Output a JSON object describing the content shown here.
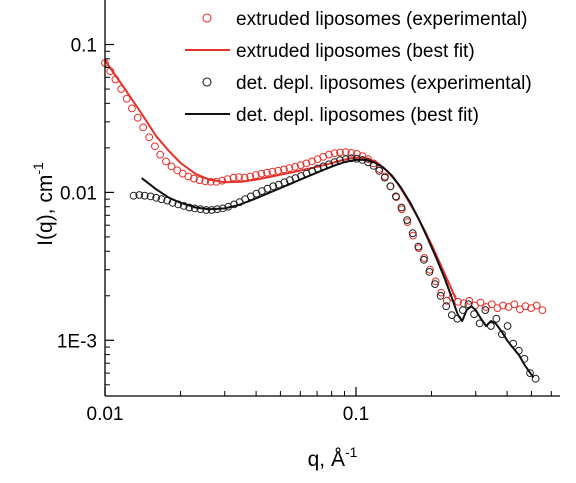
{
  "chart_data": {
    "type": "scatter",
    "x_scale": "log",
    "y_scale": "log",
    "xlim": [
      0.01,
      0.65
    ],
    "ylim": [
      0.00042,
      0.2
    ],
    "xlabel": "q, Å",
    "xlabel_sup": "-1",
    "ylabel": "I(q), cm",
    "ylabel_sup": "-1",
    "x_ticks": [
      0.01,
      0.1
    ],
    "x_tick_labels": [
      "0.01",
      "0.1"
    ],
    "y_ticks": [
      0.001,
      0.01,
      0.1
    ],
    "y_tick_labels": [
      "1E-3",
      "0.01",
      "0.1"
    ],
    "grid": false,
    "legend_position": "top-right",
    "series": [
      {
        "name": "extruded liposomes (experimental)",
        "kind": "markers",
        "marker": "open-circle",
        "color": "#e8302a",
        "x": [
          0.01,
          0.0105,
          0.011,
          0.0116,
          0.0122,
          0.0128,
          0.0135,
          0.0142,
          0.015,
          0.0158,
          0.0166,
          0.0175,
          0.0184,
          0.0194,
          0.0204,
          0.0215,
          0.0226,
          0.0238,
          0.0251,
          0.0264,
          0.0278,
          0.0293,
          0.0308,
          0.0325,
          0.0342,
          0.036,
          0.0379,
          0.0399,
          0.042,
          0.0442,
          0.0465,
          0.049,
          0.0516,
          0.0543,
          0.0572,
          0.0602,
          0.0634,
          0.0668,
          0.0703,
          0.074,
          0.078,
          0.0821,
          0.0864,
          0.091,
          0.0958,
          0.1009,
          0.1062,
          0.1118,
          0.1177,
          0.124,
          0.1305,
          0.1374,
          0.1447,
          0.1523,
          0.1604,
          0.1689,
          0.1778,
          0.1872,
          0.1971,
          0.2076,
          0.2185,
          0.2301,
          0.2423,
          0.2551,
          0.2686,
          0.2828,
          0.2978,
          0.3135,
          0.3301,
          0.3476,
          0.366,
          0.3853,
          0.4057,
          0.4272,
          0.4498,
          0.4736,
          0.4987,
          0.525,
          0.553
        ],
        "y": [
          0.075,
          0.066,
          0.058,
          0.05,
          0.043,
          0.037,
          0.032,
          0.0275,
          0.0236,
          0.0205,
          0.018,
          0.0162,
          0.015,
          0.0141,
          0.0134,
          0.0128,
          0.0124,
          0.0121,
          0.0119,
          0.0118,
          0.0118,
          0.012,
          0.0123,
          0.0126,
          0.0127,
          0.0126,
          0.0128,
          0.0131,
          0.0134,
          0.0136,
          0.0138,
          0.014,
          0.0143,
          0.0146,
          0.0149,
          0.0153,
          0.0157,
          0.0162,
          0.0168,
          0.0174,
          0.018,
          0.0184,
          0.0186,
          0.0187,
          0.0185,
          0.0182,
          0.0176,
          0.0168,
          0.0157,
          0.0144,
          0.0128,
          0.011,
          0.0093,
          0.0077,
          0.0063,
          0.0051,
          0.0042,
          0.0036,
          0.003,
          0.0025,
          0.0021,
          0.00185,
          0.00195,
          0.00182,
          0.00178,
          0.00185,
          0.00172,
          0.0018,
          0.00168,
          0.00175,
          0.00165,
          0.00172,
          0.00168,
          0.00175,
          0.00162,
          0.0017,
          0.00165,
          0.00172,
          0.0016
        ]
      },
      {
        "name": "extruded liposomes (best fit)",
        "kind": "line",
        "color": "#e8302a",
        "x": [
          0.01,
          0.012,
          0.014,
          0.016,
          0.018,
          0.02,
          0.023,
          0.026,
          0.03,
          0.035,
          0.04,
          0.045,
          0.05,
          0.056,
          0.063,
          0.07,
          0.078,
          0.086,
          0.095,
          0.103,
          0.112,
          0.122,
          0.133,
          0.145,
          0.158,
          0.172,
          0.187,
          0.203,
          0.22,
          0.238,
          0.25
        ],
        "y": [
          0.078,
          0.05,
          0.034,
          0.024,
          0.019,
          0.0158,
          0.0133,
          0.0122,
          0.0117,
          0.0118,
          0.0122,
          0.0127,
          0.0132,
          0.0137,
          0.0143,
          0.0149,
          0.0156,
          0.0163,
          0.017,
          0.0172,
          0.0169,
          0.0158,
          0.014,
          0.0118,
          0.0094,
          0.0073,
          0.0056,
          0.0042,
          0.0031,
          0.0023,
          0.0019
        ]
      },
      {
        "name": "det. depl. liposomes (experimental)",
        "kind": "markers",
        "marker": "open-circle",
        "color": "#222222",
        "x": [
          0.013,
          0.0137,
          0.0144,
          0.0152,
          0.016,
          0.0168,
          0.0177,
          0.0186,
          0.0196,
          0.0206,
          0.0217,
          0.0228,
          0.024,
          0.0253,
          0.0266,
          0.028,
          0.0295,
          0.031,
          0.0327,
          0.0344,
          0.0362,
          0.0381,
          0.0401,
          0.0422,
          0.0444,
          0.0468,
          0.0492,
          0.0518,
          0.0545,
          0.0574,
          0.0604,
          0.0636,
          0.0669,
          0.0704,
          0.0741,
          0.078,
          0.0821,
          0.0864,
          0.091,
          0.0958,
          0.1008,
          0.1061,
          0.1117,
          0.1176,
          0.1237,
          0.1302,
          0.1371,
          0.1443,
          0.1519,
          0.1599,
          0.1683,
          0.1771,
          0.1864,
          0.1962,
          0.2065,
          0.2174,
          0.2288,
          0.2408,
          0.2535,
          0.2668,
          0.2808,
          0.2956,
          0.3111,
          0.3275,
          0.3447,
          0.3628,
          0.3819,
          0.402,
          0.4231,
          0.4454,
          0.4688,
          0.4935,
          0.5195
        ],
        "y": [
          0.0095,
          0.0096,
          0.0095,
          0.0094,
          0.0092,
          0.009,
          0.0088,
          0.0085,
          0.0083,
          0.0081,
          0.0079,
          0.0078,
          0.0077,
          0.0076,
          0.0076,
          0.0077,
          0.0078,
          0.008,
          0.0083,
          0.0086,
          0.009,
          0.0094,
          0.0098,
          0.0102,
          0.0106,
          0.011,
          0.0113,
          0.0117,
          0.0121,
          0.0125,
          0.0129,
          0.0134,
          0.0139,
          0.0145,
          0.015,
          0.0155,
          0.016,
          0.0165,
          0.0168,
          0.017,
          0.0169,
          0.0166,
          0.016,
          0.0151,
          0.014,
          0.0126,
          0.011,
          0.0094,
          0.0079,
          0.0065,
          0.0053,
          0.0043,
          0.0035,
          0.0029,
          0.0024,
          0.002,
          0.0017,
          0.00148,
          0.0014,
          0.0016,
          0.00175,
          0.0015,
          0.0013,
          0.0016,
          0.00125,
          0.0014,
          0.0011,
          0.00125,
          0.00095,
          0.00085,
          0.00075,
          0.0006,
          0.00055
        ]
      },
      {
        "name": "det. depl. liposomes (best fit)",
        "kind": "line",
        "color": "#111111",
        "x": [
          0.014,
          0.016,
          0.018,
          0.02,
          0.023,
          0.026,
          0.03,
          0.034,
          0.038,
          0.043,
          0.048,
          0.054,
          0.06,
          0.067,
          0.075,
          0.083,
          0.091,
          0.1,
          0.109,
          0.118,
          0.128,
          0.139,
          0.151,
          0.164,
          0.178,
          0.193,
          0.209,
          0.226,
          0.242,
          0.255,
          0.265,
          0.276,
          0.288,
          0.3,
          0.315,
          0.33,
          0.345,
          0.36,
          0.38,
          0.4,
          0.42,
          0.445,
          0.47,
          0.495,
          0.51
        ],
        "y": [
          0.0125,
          0.0105,
          0.0092,
          0.0085,
          0.0079,
          0.0077,
          0.0078,
          0.0082,
          0.0088,
          0.0096,
          0.0104,
          0.0113,
          0.0122,
          0.0132,
          0.0143,
          0.0153,
          0.0161,
          0.0166,
          0.0166,
          0.016,
          0.0148,
          0.013,
          0.0108,
          0.0086,
          0.0066,
          0.0049,
          0.0036,
          0.0026,
          0.0019,
          0.00148,
          0.00135,
          0.0016,
          0.0017,
          0.0016,
          0.0014,
          0.00125,
          0.00135,
          0.0013,
          0.00115,
          0.001,
          0.0009,
          0.0008,
          0.00068,
          0.0006,
          0.00056
        ]
      }
    ]
  }
}
